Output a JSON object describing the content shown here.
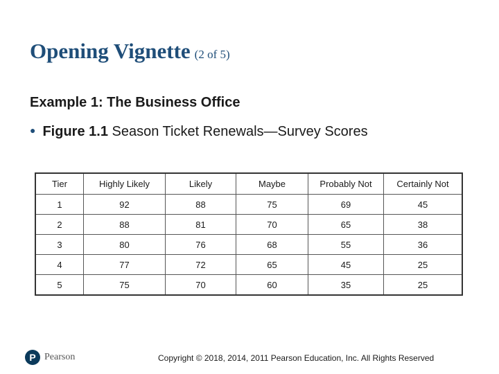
{
  "title": {
    "main": "Opening Vignette",
    "part": "(2 of 5)"
  },
  "example_heading": "Example 1: The Business Office",
  "bullet": {
    "bold": "Figure 1.1",
    "rest": " Season Ticket Renewals—Survey Scores"
  },
  "table": {
    "headers": [
      "Tier",
      "Highly Likely",
      "Likely",
      "Maybe",
      "Probably Not",
      "Certainly Not"
    ],
    "rows": [
      [
        "1",
        "92",
        "88",
        "75",
        "69",
        "45"
      ],
      [
        "2",
        "88",
        "81",
        "70",
        "65",
        "38"
      ],
      [
        "3",
        "80",
        "76",
        "68",
        "55",
        "36"
      ],
      [
        "4",
        "77",
        "72",
        "65",
        "45",
        "25"
      ],
      [
        "5",
        "75",
        "70",
        "60",
        "35",
        "25"
      ]
    ]
  },
  "logo": {
    "mark": "P",
    "word": "Pearson"
  },
  "copyright": "Copyright © 2018, 2014, 2011 Pearson Education, Inc. All Rights Reserved"
}
